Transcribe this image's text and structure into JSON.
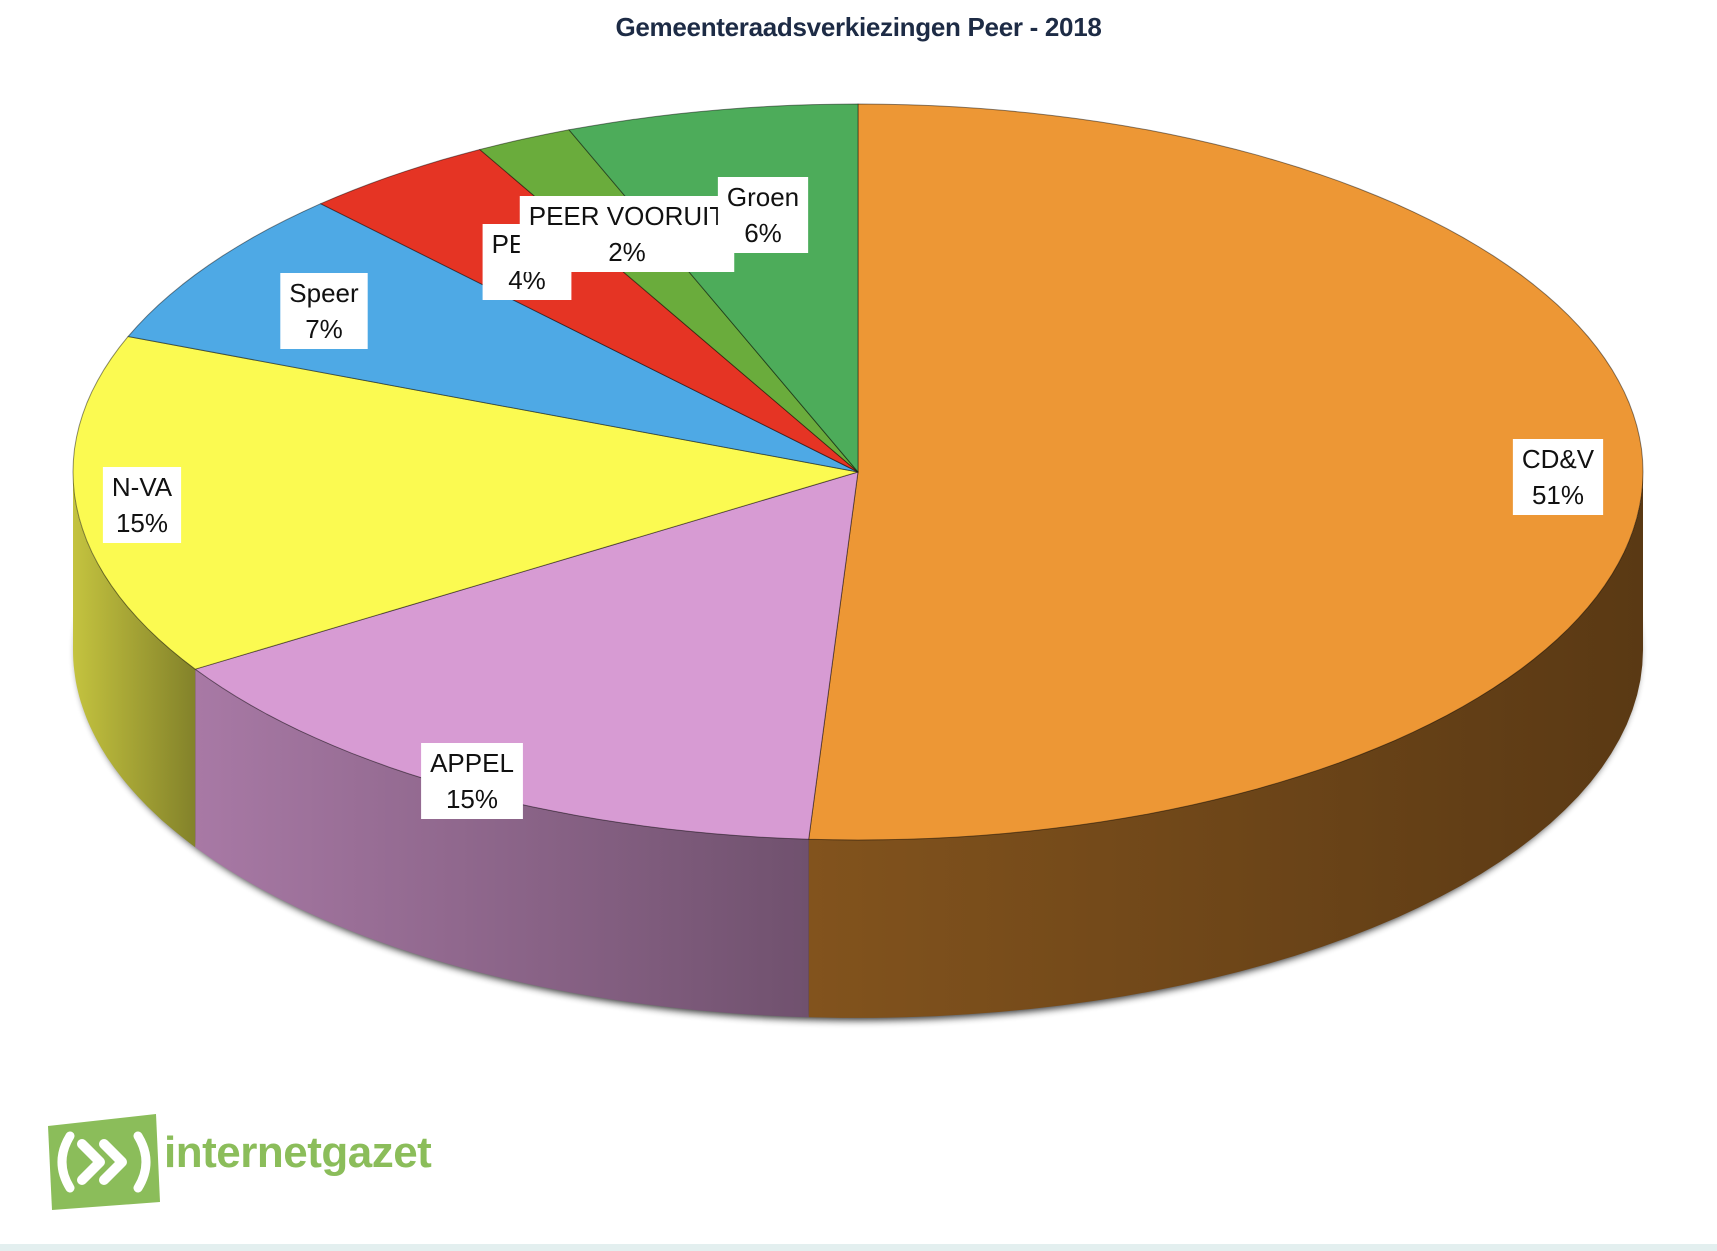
{
  "chart_data": {
    "type": "pie",
    "title": "Gemeenteraadsverkiezingen Peer - 2018",
    "categories": [
      "CD&V",
      "APPEL",
      "N-VA",
      "Speer",
      "PEER",
      "PEER VOORUIT",
      "Groen"
    ],
    "values": [
      51,
      15,
      15,
      7,
      4,
      2,
      6
    ],
    "labels": [
      "51%",
      "15%",
      "15%",
      "7%",
      "4%",
      "2%",
      "6%"
    ],
    "colors": [
      "#ed9735",
      "#d79bd3",
      "#fbfa51",
      "#4ea9e5",
      "#e53424",
      "#6aac3c",
      "#4dac5a"
    ],
    "legend": "none"
  },
  "logo": {
    "wordmark": "internetgazet",
    "icon": "fast-forward-icon",
    "color": "#8bbd5a"
  }
}
